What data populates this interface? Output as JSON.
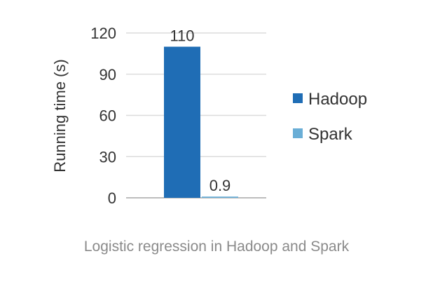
{
  "chart_data": {
    "type": "bar",
    "series": [
      {
        "name": "Hadoop",
        "value": 110,
        "label": "110",
        "color": "#1f6db5"
      },
      {
        "name": "Spark",
        "value": 0.9,
        "label": "0.9",
        "color": "#6aaed6"
      }
    ],
    "ylabel": "Running time (s)",
    "ylim": [
      0,
      120
    ],
    "yticks": [
      "0",
      "30",
      "60",
      "90",
      "120"
    ],
    "ytick_values": [
      0,
      30,
      60,
      90,
      120
    ],
    "grid": true,
    "legend_position": "right"
  },
  "caption": "Logistic regression in Hadoop and Spark"
}
